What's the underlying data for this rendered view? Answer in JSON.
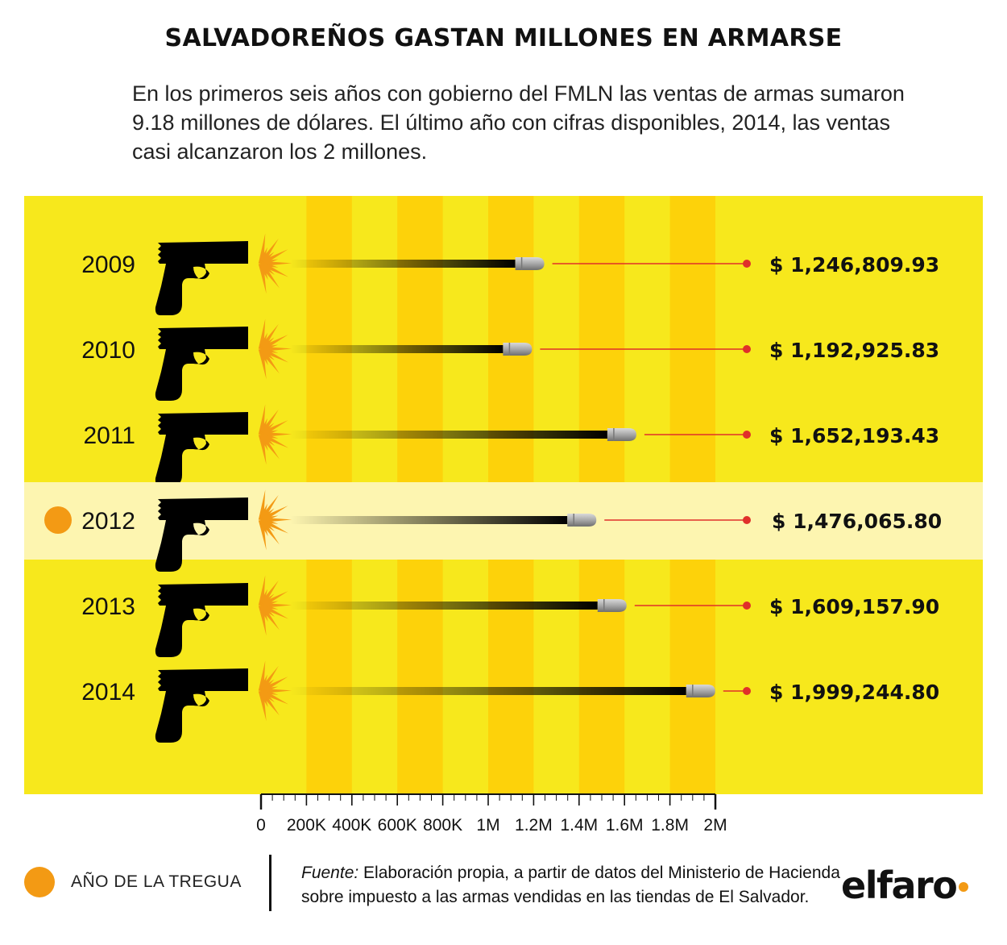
{
  "title": "SALVADOREÑOS GASTAN MILLONES EN ARMARSE",
  "subtitle": "En los primeros seis años con gobierno del FMLN las ventas de armas sumaron 9.18 millones de dólares. El último año con cifras disponibles, 2014, las ventas casi alcanzaron los 2 millones.",
  "legend": {
    "label": "AÑO DE LA TREGUA",
    "color": "#f39a14"
  },
  "source": {
    "prefix": "Fuente:",
    "text": " Elaboración propia, a partir de datos del Ministerio de Hacienda sobre impuesto a las armas vendidas en las tiendas de El Salvador."
  },
  "logo": {
    "text": "elfaro"
  },
  "colors": {
    "background": "#f7e81c",
    "stripe": "#fdd20a",
    "highlight_row": "#fdf5b0",
    "laser": "#e0302a",
    "flash": "#f39a14",
    "bullet": "#a8a8a8"
  },
  "chart_data": {
    "type": "bar",
    "categories": [
      "2009",
      "2010",
      "2011",
      "2012",
      "2013",
      "2014"
    ],
    "values": [
      1246809.93,
      1192925.83,
      1652193.43,
      1476065.8,
      1609157.9,
      1999244.8
    ],
    "value_labels": [
      "$ 1,246,809.93",
      "$ 1,192,925.83",
      "$ 1,652,193.43",
      "$ 1,476,065.80",
      "$ 1,609,157.90",
      "$ 1,999,244.80"
    ],
    "highlight": "2012",
    "xlim": [
      0,
      2000000
    ],
    "x_ticks": [
      0,
      200000,
      400000,
      600000,
      800000,
      1000000,
      1200000,
      1400000,
      1600000,
      1800000,
      2000000
    ],
    "x_tick_labels": [
      "0",
      "200K",
      "400K",
      "600K",
      "800K",
      "1M",
      "1.2M",
      "1.4M",
      "1.6M",
      "1.8M",
      "2M"
    ],
    "orientation": "horizontal"
  }
}
